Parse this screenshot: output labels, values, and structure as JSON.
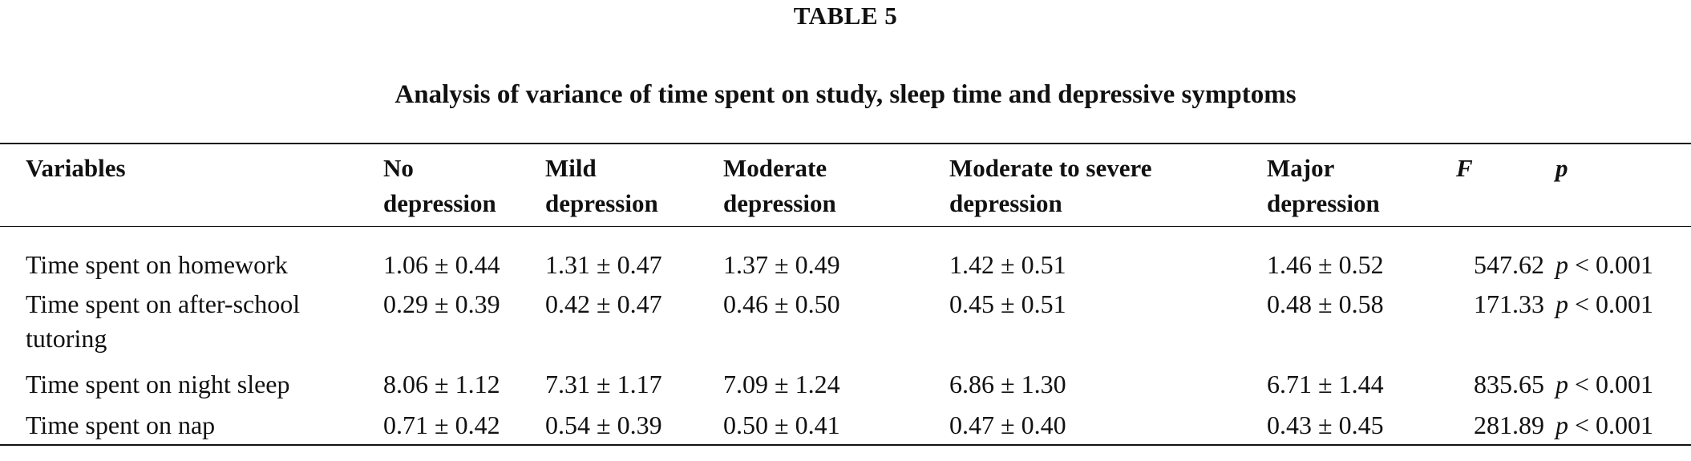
{
  "label": "TABLE 5",
  "caption": "Analysis of variance of time spent on study, sleep time and depressive symptoms",
  "columns": {
    "variables": "Variables",
    "no_depression": {
      "line1": "No",
      "line2": "depression"
    },
    "mild": {
      "line1": "Mild",
      "line2": "depression"
    },
    "moderate": {
      "line1": "Moderate",
      "line2": "depression"
    },
    "moderate_severe": {
      "line1": "Moderate to severe",
      "line2": "depression"
    },
    "major": {
      "line1": "Major",
      "line2": "depression"
    },
    "f": "F",
    "p": "p"
  },
  "rows": [
    {
      "variable": "Time spent on homework",
      "no_depression": "1.06 ± 0.44",
      "mild": "1.31 ± 0.47",
      "moderate": "1.37 ± 0.49",
      "moderate_severe": "1.42 ± 0.51",
      "major": "1.46 ± 0.52",
      "f": "547.62",
      "p_symbol": "p",
      "p_value": " < 0.001"
    },
    {
      "variable": "Time spent on after-school tutoring",
      "no_depression": "0.29 ± 0.39",
      "mild": "0.42 ± 0.47",
      "moderate": "0.46 ± 0.50",
      "moderate_severe": "0.45 ± 0.51",
      "major": "0.48 ± 0.58",
      "f": "171.33",
      "p_symbol": "p",
      "p_value": " < 0.001"
    },
    {
      "variable": "Time spent on night sleep",
      "no_depression": "8.06 ± 1.12",
      "mild": "7.31 ± 1.17",
      "moderate": "7.09 ± 1.24",
      "moderate_severe": "6.86 ± 1.30",
      "major": "6.71 ± 1.44",
      "f": "835.65",
      "p_symbol": "p",
      "p_value": " < 0.001"
    },
    {
      "variable": "Time spent on nap",
      "no_depression": "0.71 ± 0.42",
      "mild": "0.54 ± 0.39",
      "moderate": "0.50 ± 0.41",
      "moderate_severe": "0.47 ± 0.40",
      "major": "0.43 ± 0.45",
      "f": "281.89",
      "p_symbol": "p",
      "p_value": " < 0.001"
    }
  ]
}
